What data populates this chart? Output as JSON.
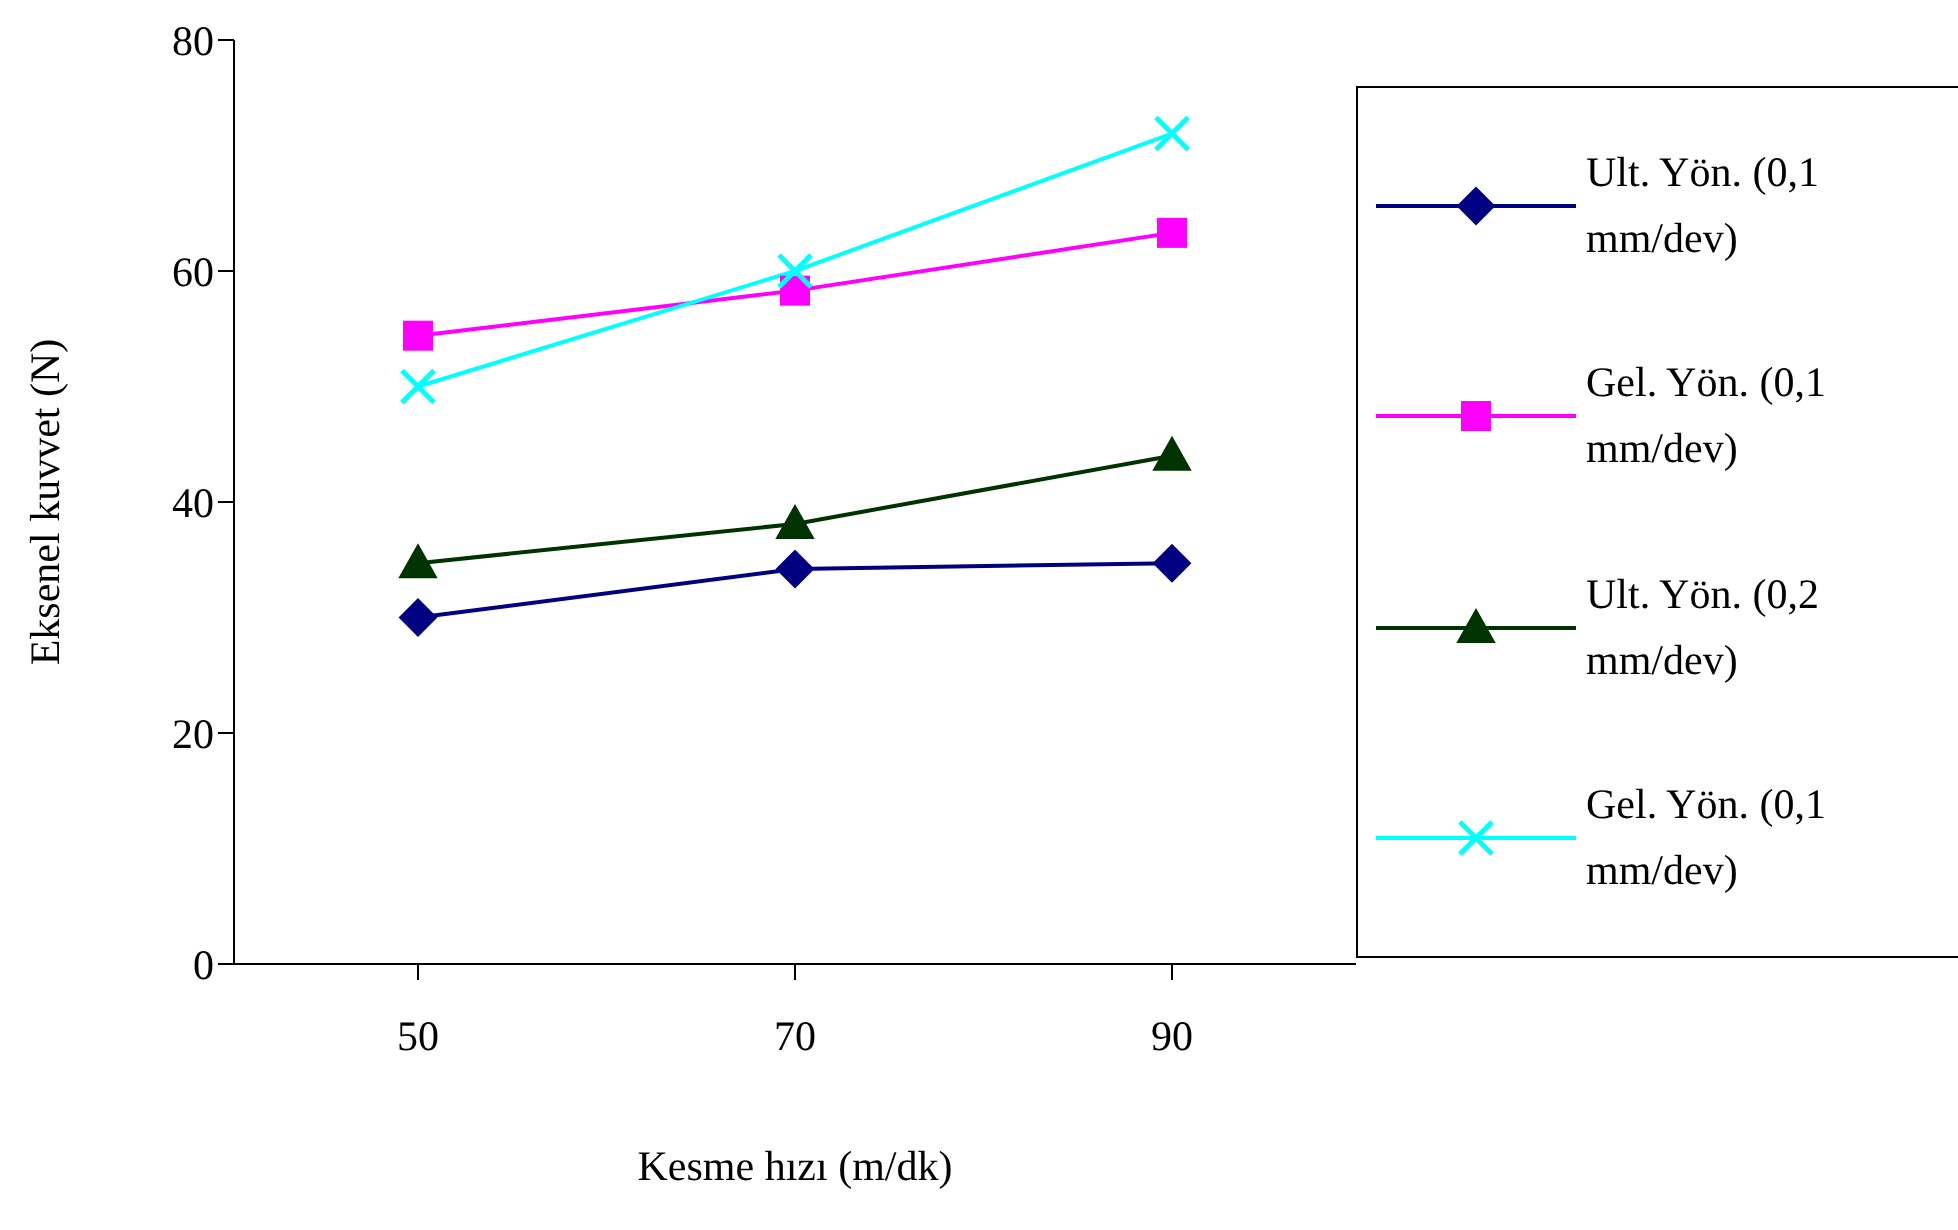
{
  "chart_data": {
    "type": "line",
    "xlabel": "Kesme hızı (m/dk)",
    "ylabel": "Eksenel kuvvet (N)",
    "categories": [
      "50",
      "70",
      "90"
    ],
    "ylim": [
      0,
      80
    ],
    "yticks": [
      0,
      20,
      40,
      60,
      80
    ],
    "grid": false,
    "legend": "right",
    "line_style": "solid",
    "series": [
      {
        "name": "Ult. Yön. (0,1 mm/dev)",
        "color": "#000080",
        "marker": "diamond",
        "values": [
          30,
          34.2,
          34.7
        ]
      },
      {
        "name": "Gel. Yön. (0,1 mm/dev)",
        "color": "#ff00ff",
        "marker": "square",
        "values": [
          54.4,
          58.3,
          63.3
        ]
      },
      {
        "name": "Ult. Yön. (0,2 mm/dev)",
        "color": "#003300",
        "marker": "triangle",
        "values": [
          34.7,
          38.1,
          44
        ]
      },
      {
        "name": "Gel. Yön. (0,1 mm/dev)",
        "color": "#00ffff",
        "marker": "cross",
        "values": [
          50,
          60,
          71.9
        ]
      }
    ]
  }
}
